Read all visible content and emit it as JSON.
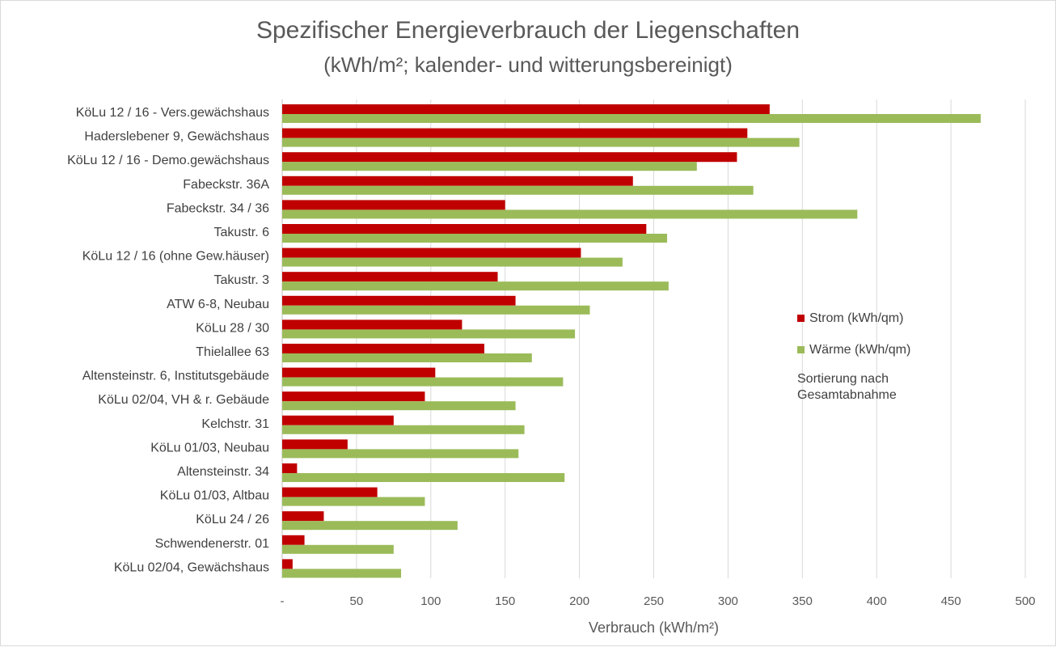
{
  "chart_data": {
    "type": "bar",
    "orientation": "horizontal",
    "title": "Spezifischer Energieverbrauch der Liegenschaften",
    "subtitle": "(kWh/m²; kalender- und witterungsbereinigt)",
    "xlabel": "Verbrauch (kWh/m²)",
    "ylabel": "",
    "xlim": [
      0,
      500
    ],
    "xticks": [
      0,
      50,
      100,
      150,
      200,
      250,
      300,
      350,
      400,
      450,
      500
    ],
    "xtick_labels": [
      "-",
      "50",
      "100",
      "150",
      "200",
      "250",
      "300",
      "350",
      "400",
      "450",
      "500"
    ],
    "grid": "vertical",
    "legend_position": "right",
    "categories": [
      "KöLu 12 / 16 - Vers.gewächshaus",
      "Haderslebener 9, Gewächshaus",
      "KöLu 12 / 16 - Demo.gewächshaus",
      "Fabeckstr. 36A",
      "Fabeckstr. 34 / 36",
      "Takustr. 6",
      "KöLu 12 / 16 (ohne Gew.häuser)",
      "Takustr. 3",
      "ATW 6-8, Neubau",
      "KöLu 28 / 30",
      "Thielallee 63",
      "Altensteinstr. 6, Institutsgebäude",
      "KöLu 02/04, VH & r. Gebäude",
      "Kelchstr. 31",
      "KöLu 01/03, Neubau",
      "Altensteinstr. 34",
      "KöLu 01/03, Altbau",
      "KöLu 24 / 26",
      "Schwendenerstr. 01",
      "KöLu 02/04, Gewächshaus"
    ],
    "series": [
      {
        "name": "Strom (kWh/qm)",
        "color": "#c00000",
        "values": [
          328,
          313,
          306,
          236,
          150,
          245,
          201,
          145,
          157,
          121,
          136,
          103,
          96,
          75,
          44,
          10,
          64,
          28,
          15,
          7
        ]
      },
      {
        "name": "Wärme (kWh/qm)",
        "color": "#9bbb59",
        "values": [
          470,
          348,
          279,
          317,
          387,
          259,
          229,
          260,
          207,
          197,
          168,
          189,
          157,
          163,
          159,
          190,
          96,
          118,
          75,
          80
        ]
      }
    ],
    "annotation": "Sortierung nach Gesamtabnahme"
  }
}
